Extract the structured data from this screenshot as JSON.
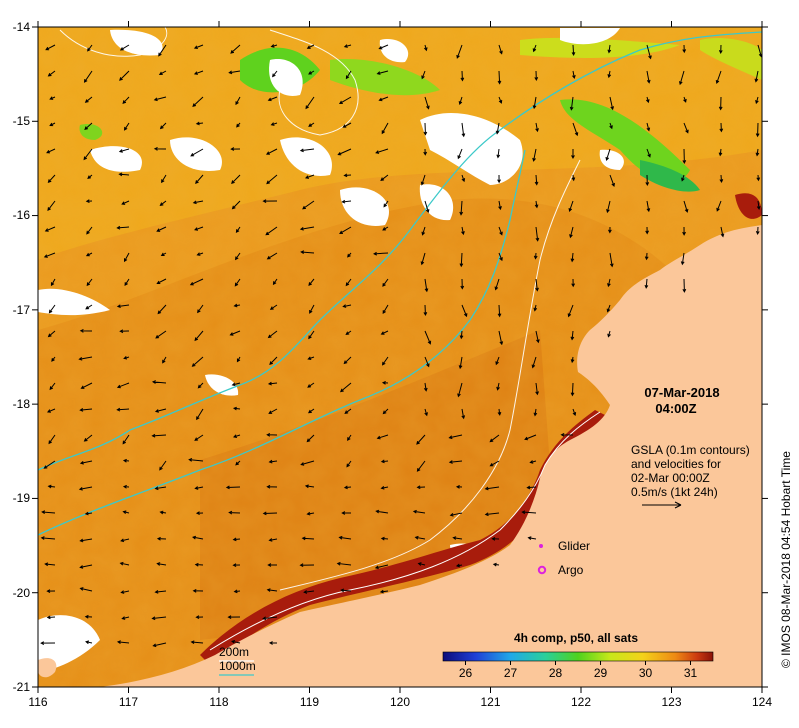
{
  "map": {
    "lon_range": [
      116,
      124
    ],
    "lat_range": [
      -21,
      -14
    ],
    "x_ticks": [
      "116",
      "117",
      "118",
      "119",
      "120",
      "121",
      "122",
      "123",
      "124"
    ],
    "y_ticks": [
      "-14",
      "-15",
      "-16",
      "-17",
      "-18",
      "-19",
      "-20",
      "-21"
    ]
  },
  "annotations": {
    "date": "07-Mar-2018",
    "time": "04:00Z",
    "gsla_line1": "GSLA (0.1m contours)",
    "gsla_line2": "and velocities for",
    "gsla_line3": "02-Mar 00:00Z",
    "gsla_line4": "0.5m/s (1kt 24h)",
    "glider_label": "Glider",
    "argo_label": "Argo",
    "depth_200": "200m",
    "depth_1000": "1000m",
    "credit": "© IMOS 08-Mar-2018 04:54 Hobart Time"
  },
  "colorbar": {
    "title": "4h comp, p50, all sats",
    "ticks": [
      "26",
      "27",
      "28",
      "29",
      "30",
      "31"
    ],
    "range": [
      25.5,
      31.5
    ]
  },
  "colors": {
    "land": "#fbc79a",
    "ocean_base": "#eb9a1e",
    "ocean_warm": "#de7d12",
    "ocean_cool": "#f2b51c",
    "hot_coast": "#a81c0c",
    "contour_200": "#ffffff",
    "contour_1000": "#3cc9c9",
    "glider": "#dd22dd",
    "argo": "#dd22dd"
  }
}
